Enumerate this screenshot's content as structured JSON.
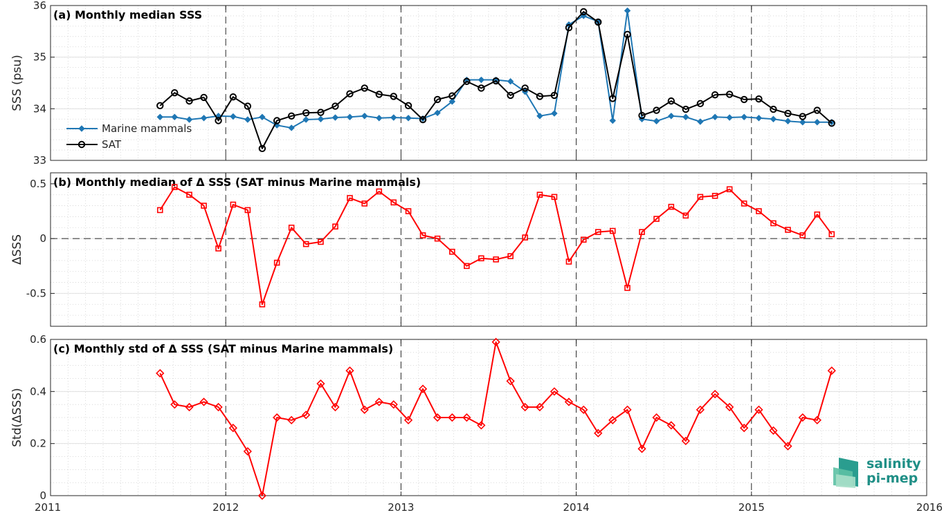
{
  "chart_data": [
    {
      "type": "line",
      "title": "(a) Monthly median SSS",
      "ylabel": "SSS (psu)",
      "xlim": [
        2011,
        2016
      ],
      "ylim": [
        33,
        36
      ],
      "yticks": [
        "33",
        "34",
        "35",
        "36"
      ],
      "legend": {
        "placement": "lower-left",
        "entries": [
          "Marine mammals",
          "SAT"
        ]
      },
      "series": [
        {
          "name": "Marine mammals",
          "color": "#1f77b4",
          "marker": "diamond-filled",
          "x": [
            2011.625,
            2011.708,
            2011.792,
            2011.875,
            2011.958,
            2012.042,
            2012.125,
            2012.208,
            2012.292,
            2012.375,
            2012.458,
            2012.542,
            2012.625,
            2012.708,
            2012.792,
            2012.875,
            2012.958,
            2013.042,
            2013.125,
            2013.208,
            2013.292,
            2013.375,
            2013.458,
            2013.542,
            2013.625,
            2013.708,
            2013.792,
            2013.875,
            2013.958,
            2014.042,
            2014.125,
            2014.208,
            2014.292,
            2014.375,
            2014.458,
            2014.542,
            2014.625,
            2014.708,
            2014.792,
            2014.875,
            2014.958,
            2015.042,
            2015.125,
            2015.208,
            2015.292,
            2015.375,
            2015.458
          ],
          "y": [
            33.84,
            33.84,
            33.79,
            33.82,
            33.86,
            33.85,
            33.79,
            33.84,
            33.68,
            33.63,
            33.79,
            33.8,
            33.83,
            33.84,
            33.86,
            33.82,
            33.83,
            33.82,
            33.81,
            33.92,
            34.14,
            34.56,
            34.56,
            34.56,
            34.53,
            34.33,
            33.86,
            33.91,
            35.63,
            35.8,
            35.69,
            33.77,
            35.9,
            33.8,
            33.76,
            33.86,
            33.84,
            33.75,
            33.84,
            33.83,
            33.84,
            33.82,
            33.8,
            33.76,
            33.74,
            33.74,
            33.74
          ]
        },
        {
          "name": "SAT",
          "color": "#000000",
          "marker": "circle-open",
          "x": [
            2011.625,
            2011.708,
            2011.792,
            2011.875,
            2011.958,
            2012.042,
            2012.125,
            2012.208,
            2012.292,
            2012.375,
            2012.458,
            2012.542,
            2012.625,
            2012.708,
            2012.792,
            2012.875,
            2012.958,
            2013.042,
            2013.125,
            2013.208,
            2013.292,
            2013.375,
            2013.458,
            2013.542,
            2013.625,
            2013.708,
            2013.792,
            2013.875,
            2013.958,
            2014.042,
            2014.125,
            2014.208,
            2014.292,
            2014.375,
            2014.458,
            2014.542,
            2014.625,
            2014.708,
            2014.792,
            2014.875,
            2014.958,
            2015.042,
            2015.125,
            2015.208,
            2015.292,
            2015.375,
            2015.458
          ],
          "y": [
            34.06,
            34.31,
            34.15,
            34.22,
            33.77,
            34.23,
            34.05,
            33.23,
            33.77,
            33.86,
            33.92,
            33.93,
            34.05,
            34.29,
            34.4,
            34.28,
            34.24,
            34.06,
            33.79,
            34.18,
            34.25,
            34.53,
            34.4,
            34.54,
            34.26,
            34.4,
            34.24,
            34.26,
            35.57,
            35.88,
            35.68,
            34.2,
            35.44,
            33.87,
            33.97,
            34.15,
            33.99,
            34.1,
            34.27,
            34.28,
            34.18,
            34.19,
            33.99,
            33.91,
            33.85,
            33.97,
            33.72
          ]
        }
      ]
    },
    {
      "type": "line",
      "title": "(b) Monthly median of Δ SSS (SAT minus Marine mammals)",
      "ylabel": "ΔSSS",
      "xlim": [
        2011,
        2016
      ],
      "ylim": [
        -0.8,
        0.6
      ],
      "yticks": [
        "-0.5",
        "0",
        "0.5"
      ],
      "zero_line": true,
      "series": [
        {
          "color": "#ff0000",
          "marker": "square-open",
          "x": [
            2011.625,
            2011.708,
            2011.792,
            2011.875,
            2011.958,
            2012.042,
            2012.125,
            2012.208,
            2012.292,
            2012.375,
            2012.458,
            2012.542,
            2012.625,
            2012.708,
            2012.792,
            2012.875,
            2012.958,
            2013.042,
            2013.125,
            2013.208,
            2013.292,
            2013.375,
            2013.458,
            2013.542,
            2013.625,
            2013.708,
            2013.792,
            2013.875,
            2013.958,
            2014.042,
            2014.125,
            2014.208,
            2014.292,
            2014.375,
            2014.458,
            2014.542,
            2014.625,
            2014.708,
            2014.792,
            2014.875,
            2014.958,
            2015.042,
            2015.125,
            2015.208,
            2015.292,
            2015.375,
            2015.458
          ],
          "y": [
            0.26,
            0.47,
            0.4,
            0.3,
            -0.09,
            0.31,
            0.26,
            -0.6,
            -0.22,
            0.1,
            -0.05,
            -0.03,
            0.11,
            0.37,
            0.32,
            0.43,
            0.33,
            0.25,
            0.03,
            0.0,
            -0.12,
            -0.25,
            -0.18,
            -0.19,
            -0.16,
            0.01,
            0.4,
            0.38,
            -0.21,
            -0.01,
            0.06,
            0.07,
            -0.45,
            0.06,
            0.18,
            0.29,
            0.21,
            0.38,
            0.39,
            0.45,
            0.32,
            0.25,
            0.14,
            0.08,
            0.03,
            0.22,
            0.04
          ]
        }
      ]
    },
    {
      "type": "line",
      "title": "(c) Monthly std of Δ SSS (SAT minus Marine mammals)",
      "ylabel": "Std(ΔSSS)",
      "xlabel": "",
      "xlim": [
        2011,
        2016
      ],
      "ylim": [
        0,
        0.6
      ],
      "yticks": [
        "0",
        "0.2",
        "0.4",
        "0.6"
      ],
      "xticks": [
        "2011",
        "2012",
        "2013",
        "2014",
        "2015",
        "2016"
      ],
      "series": [
        {
          "color": "#ff0000",
          "marker": "diamond-open",
          "x": [
            2011.625,
            2011.708,
            2011.792,
            2011.875,
            2011.958,
            2012.042,
            2012.125,
            2012.208,
            2012.292,
            2012.375,
            2012.458,
            2012.542,
            2012.625,
            2012.708,
            2012.792,
            2012.875,
            2012.958,
            2013.042,
            2013.125,
            2013.208,
            2013.292,
            2013.375,
            2013.458,
            2013.542,
            2013.625,
            2013.708,
            2013.792,
            2013.875,
            2013.958,
            2014.042,
            2014.125,
            2014.208,
            2014.292,
            2014.375,
            2014.458,
            2014.542,
            2014.625,
            2014.708,
            2014.792,
            2014.875,
            2014.958,
            2015.042,
            2015.125,
            2015.208,
            2015.292,
            2015.375,
            2015.458
          ],
          "y": [
            0.47,
            0.35,
            0.34,
            0.36,
            0.34,
            0.26,
            0.17,
            0.0,
            0.3,
            0.29,
            0.31,
            0.43,
            0.34,
            0.48,
            0.33,
            0.36,
            0.35,
            0.29,
            0.41,
            0.3,
            0.3,
            0.3,
            0.27,
            0.59,
            0.44,
            0.34,
            0.34,
            0.4,
            0.36,
            0.33,
            0.24,
            0.29,
            0.33,
            0.18,
            0.3,
            0.27,
            0.21,
            0.33,
            0.39,
            0.34,
            0.26,
            0.33,
            0.25,
            0.19,
            0.3,
            0.29,
            0.48
          ]
        }
      ]
    }
  ],
  "logo": {
    "line1": "salinity",
    "line2": "pi-mep",
    "color": "#1f8f86"
  }
}
